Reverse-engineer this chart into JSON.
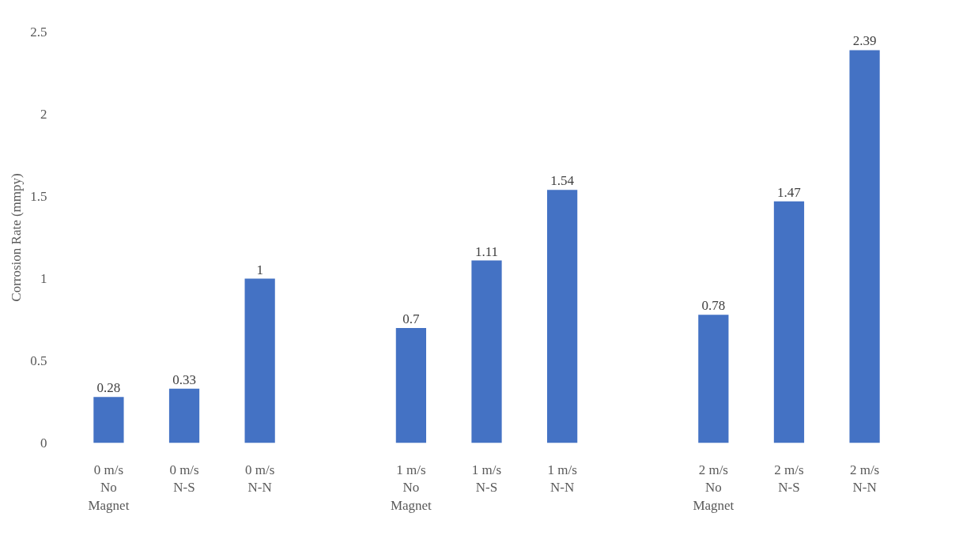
{
  "chart_data": {
    "type": "bar",
    "ylabel": "Corrosion Rate (mmpy)",
    "categories": [
      "0 m/s\nNo\nMagnet",
      "0 m/s\nN-S",
      "0 m/s\nN-N",
      null,
      "1 m/s\nNo\nMagnet",
      "1 m/s\nN-S",
      "1 m/s\nN-N",
      null,
      "2 m/s\nNo\nMagnet",
      "2 m/s\nN-S",
      "2 m/s\nN-N"
    ],
    "values": [
      0.28,
      0.33,
      1,
      null,
      0.7,
      1.11,
      1.54,
      null,
      0.78,
      1.47,
      2.39
    ],
    "color": "#4472c4",
    "ylim": [
      0,
      2.5
    ],
    "yticks": [
      0,
      0.5,
      1,
      1.5,
      2,
      2.5
    ],
    "grid": false,
    "data_labels": true
  }
}
